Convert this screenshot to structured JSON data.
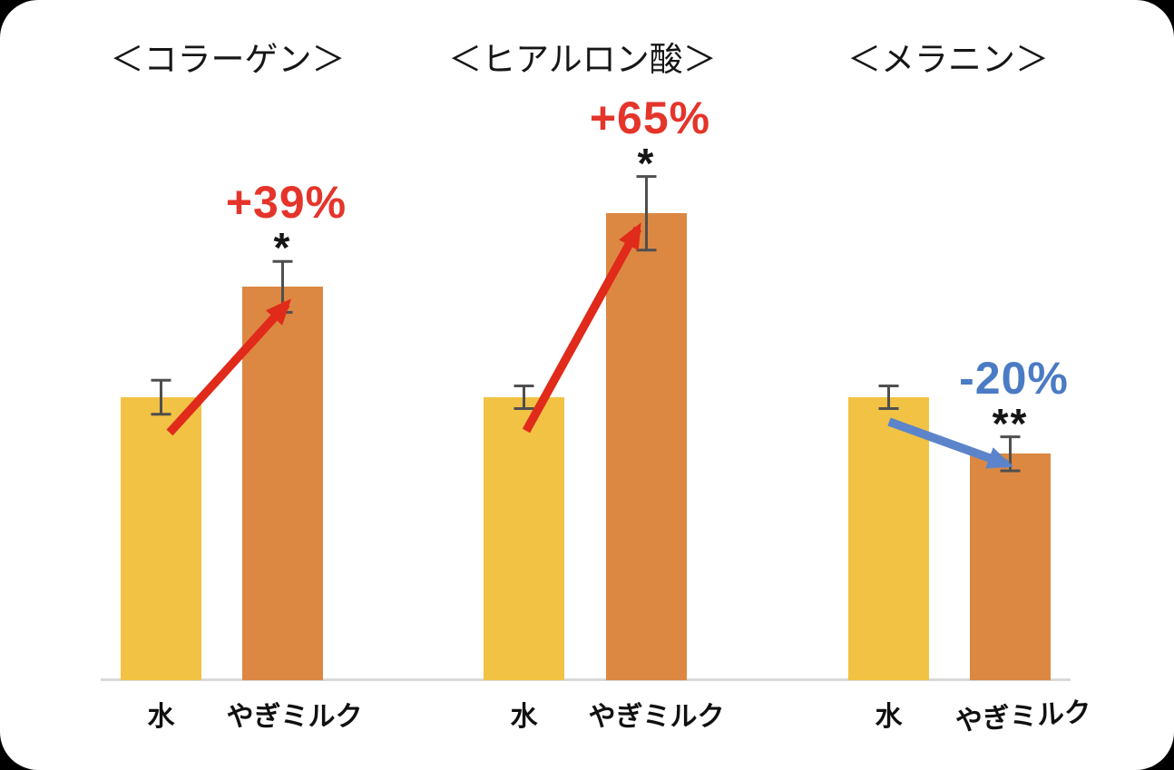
{
  "page": {
    "background_color": "#000000",
    "card_color": "#ffffff"
  },
  "chart_data": {
    "type": "bar",
    "description": "Three paired bar panels comparing 水 (water) vs やぎミルク (goat milk); values relative to water = 100",
    "categories": [
      "水",
      "やぎミルク"
    ],
    "bar_colors": [
      "#f2c244",
      "#dc8843"
    ],
    "error_bar_color": "#4f4f4f",
    "baseline_color": "#d9d9d9",
    "ylim": [
      0,
      180
    ],
    "grid": false,
    "legend": "none",
    "panels": [
      {
        "title": "＜コラーゲン＞",
        "series": [
          {
            "name": "水",
            "value": 100,
            "error": 6
          },
          {
            "name": "やぎミルク",
            "value": 139,
            "error": 9
          }
        ],
        "change_label": "+39%",
        "change_color": "#e5342a",
        "significance": "*",
        "arrow_direction": "up",
        "arrow_color": "#e02a1a"
      },
      {
        "title": "＜ヒアルロン酸＞",
        "series": [
          {
            "name": "水",
            "value": 100,
            "error": 4
          },
          {
            "name": "やぎミルク",
            "value": 165,
            "error": 13
          }
        ],
        "change_label": "+65%",
        "change_color": "#e5342a",
        "significance": "*",
        "arrow_direction": "up",
        "arrow_color": "#e02a1a"
      },
      {
        "title": "＜メラニン＞",
        "series": [
          {
            "name": "水",
            "value": 100,
            "error": 4
          },
          {
            "name": "やぎミルク",
            "value": 80,
            "error": 6
          }
        ],
        "change_label": "-20%",
        "change_color": "#4a7bc4",
        "significance": "**",
        "arrow_direction": "down",
        "arrow_color": "#5b84ca"
      }
    ]
  }
}
